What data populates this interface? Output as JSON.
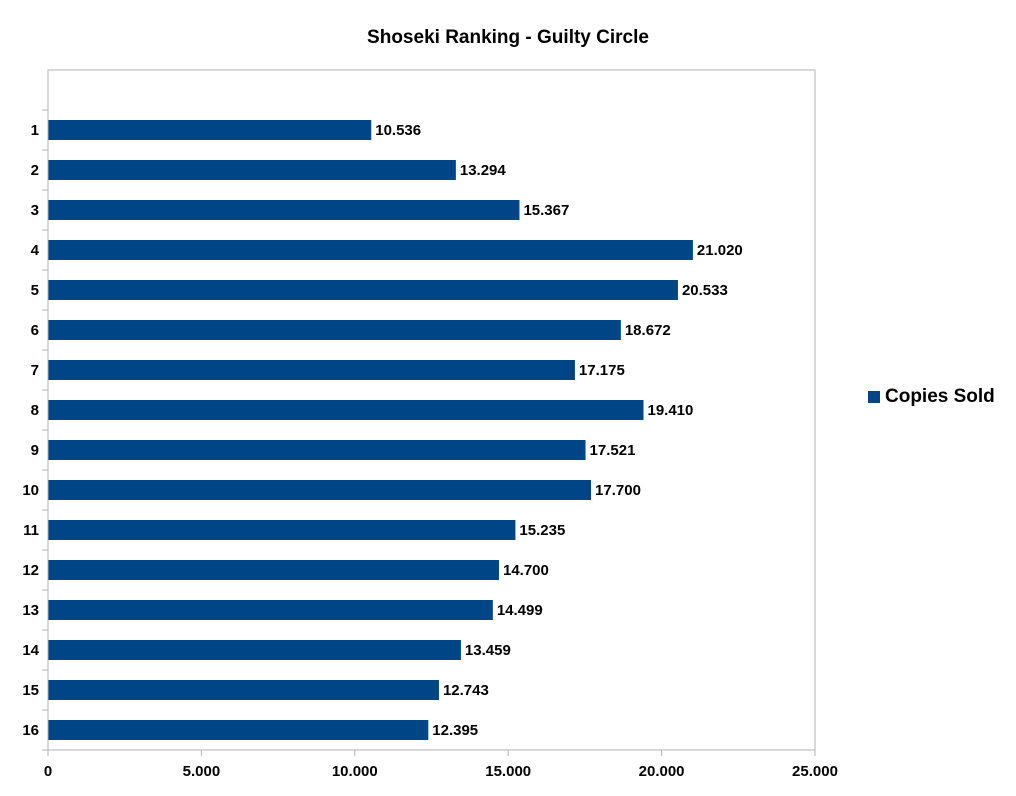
{
  "chart_data": {
    "type": "bar",
    "orientation": "horizontal",
    "title": "Shoseki Ranking - Guilty Circle",
    "xlabel": "",
    "ylabel": "",
    "categories": [
      "1",
      "2",
      "3",
      "4",
      "5",
      "6",
      "7",
      "8",
      "9",
      "10",
      "11",
      "12",
      "13",
      "14",
      "15",
      "16"
    ],
    "series": [
      {
        "name": "Copies Sold",
        "values": [
          10536,
          13294,
          15367,
          21020,
          20533,
          18672,
          17175,
          19410,
          17521,
          17700,
          15235,
          14700,
          14499,
          13459,
          12743,
          12395
        ],
        "value_labels": [
          "10.536",
          "13.294",
          "15.367",
          "21.020",
          "20.533",
          "18.672",
          "17.175",
          "19.410",
          "17.521",
          "17.700",
          "15.235",
          "14.700",
          "14.499",
          "13.459",
          "12.743",
          "12.395"
        ]
      }
    ],
    "xlim": [
      0,
      25000
    ],
    "x_ticks": [
      0,
      5000,
      10000,
      15000,
      20000,
      25000
    ],
    "x_tick_labels": [
      "0",
      "5.000",
      "10.000",
      "15.000",
      "20.000",
      "25.000"
    ],
    "grid": false,
    "legend": "right",
    "colors": {
      "bar": "#004586",
      "axis": "#b3b3b3"
    }
  }
}
